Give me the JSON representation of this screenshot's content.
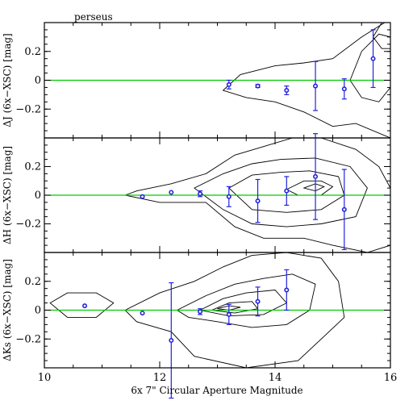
{
  "chart_data": {
    "type": "scatter",
    "title": "perseus",
    "xlabel": "6x 7\" Circular Aperture Magnitude",
    "xlim": [
      10,
      16
    ],
    "x_ticks": [
      10,
      12,
      14,
      16
    ],
    "panels": [
      {
        "name": "J",
        "ylabel": "ΔJ (6x−XSC) [mag]",
        "ylim": [
          -0.4,
          0.4
        ],
        "y_ticks": [
          "0.2",
          "0",
          "−0.2"
        ],
        "points": [
          {
            "x": 13.2,
            "y": -0.03,
            "err": 0.03
          },
          {
            "x": 13.7,
            "y": -0.04,
            "err": 0.01
          },
          {
            "x": 14.2,
            "y": -0.07,
            "err": 0.03
          },
          {
            "x": 14.7,
            "y": -0.04,
            "err": 0.17
          },
          {
            "x": 15.2,
            "y": -0.06,
            "err": 0.07
          },
          {
            "x": 15.7,
            "y": 0.15,
            "err": 0.2
          }
        ],
        "contours": [
          [
            [
              13.1,
              -0.07
            ],
            [
              13.4,
              0.04
            ],
            [
              14.0,
              0.1
            ],
            [
              14.5,
              0.12
            ],
            [
              15.0,
              0.15
            ],
            [
              15.5,
              0.3
            ],
            [
              15.9,
              0.4
            ],
            [
              16.0,
              0.4
            ],
            [
              16.0,
              -0.4
            ],
            [
              15.4,
              -0.3
            ],
            [
              15.0,
              -0.32
            ],
            [
              14.5,
              -0.22
            ],
            [
              14.0,
              -0.15
            ],
            [
              13.5,
              -0.12
            ],
            [
              13.1,
              -0.07
            ]
          ],
          [
            [
              15.3,
              0.0
            ],
            [
              15.5,
              0.2
            ],
            [
              15.8,
              0.32
            ],
            [
              16.0,
              0.3
            ],
            [
              16.0,
              -0.05
            ],
            [
              15.8,
              -0.15
            ],
            [
              15.5,
              -0.12
            ],
            [
              15.3,
              0.0
            ]
          ],
          [
            [
              15.7,
              0.3
            ],
            [
              15.85,
              0.4
            ],
            [
              16.0,
              0.4
            ],
            [
              16.0,
              0.22
            ],
            [
              15.85,
              0.22
            ],
            [
              15.7,
              0.3
            ]
          ]
        ]
      },
      {
        "name": "H",
        "ylabel": "ΔH (6x−XSC) [mag]",
        "ylim": [
          -0.4,
          0.4
        ],
        "y_ticks": [
          "0.2",
          "0",
          "−0.2"
        ],
        "points": [
          {
            "x": 11.7,
            "y": -0.01,
            "err": 0.0
          },
          {
            "x": 12.2,
            "y": 0.02,
            "err": 0.0
          },
          {
            "x": 12.7,
            "y": 0.01,
            "err": 0.02
          },
          {
            "x": 13.2,
            "y": -0.01,
            "err": 0.07
          },
          {
            "x": 13.7,
            "y": -0.04,
            "err": 0.15
          },
          {
            "x": 14.2,
            "y": 0.03,
            "err": 0.1
          },
          {
            "x": 14.7,
            "y": 0.13,
            "err": 0.3
          },
          {
            "x": 15.2,
            "y": -0.1,
            "err": 0.28
          }
        ],
        "contours": [
          [
            [
              11.4,
              0.0
            ],
            [
              11.6,
              0.03
            ],
            [
              12.2,
              0.08
            ],
            [
              12.8,
              0.15
            ],
            [
              13.3,
              0.28
            ],
            [
              13.8,
              0.34
            ],
            [
              14.3,
              0.4
            ],
            [
              14.8,
              0.4
            ],
            [
              15.4,
              0.32
            ],
            [
              15.8,
              0.2
            ],
            [
              16.0,
              0.05
            ],
            [
              16.0,
              -0.35
            ],
            [
              15.6,
              -0.4
            ],
            [
              15.0,
              -0.35
            ],
            [
              14.5,
              -0.3
            ],
            [
              13.8,
              -0.3
            ],
            [
              13.3,
              -0.22
            ],
            [
              12.8,
              -0.05
            ],
            [
              12.0,
              -0.05
            ],
            [
              11.4,
              0.0
            ]
          ],
          [
            [
              12.6,
              0.05
            ],
            [
              13.1,
              0.15
            ],
            [
              13.6,
              0.22
            ],
            [
              14.1,
              0.25
            ],
            [
              14.7,
              0.26
            ],
            [
              15.3,
              0.2
            ],
            [
              15.6,
              0.05
            ],
            [
              15.4,
              -0.15
            ],
            [
              14.8,
              -0.2
            ],
            [
              14.2,
              -0.22
            ],
            [
              13.6,
              -0.2
            ],
            [
              13.1,
              -0.1
            ],
            [
              12.6,
              0.05
            ]
          ],
          [
            [
              13.2,
              0.05
            ],
            [
              13.6,
              0.14
            ],
            [
              14.1,
              0.16
            ],
            [
              14.6,
              0.17
            ],
            [
              15.1,
              0.13
            ],
            [
              15.2,
              0.0
            ],
            [
              14.8,
              -0.1
            ],
            [
              14.2,
              -0.12
            ],
            [
              13.6,
              -0.1
            ],
            [
              13.2,
              0.05
            ]
          ],
          [
            [
              14.2,
              0.04
            ],
            [
              14.5,
              0.1
            ],
            [
              14.8,
              0.1
            ],
            [
              15.0,
              0.06
            ],
            [
              14.8,
              0.0
            ],
            [
              14.4,
              0.0
            ],
            [
              14.2,
              0.04
            ]
          ],
          [
            [
              14.5,
              0.05
            ],
            [
              14.7,
              0.08
            ],
            [
              14.85,
              0.06
            ],
            [
              14.7,
              0.03
            ],
            [
              14.5,
              0.05
            ]
          ]
        ]
      },
      {
        "name": "Ks",
        "ylabel": "ΔKs (6x−XSC) [mag]",
        "ylim": [
          -0.4,
          0.4
        ],
        "y_ticks": [
          "0.2",
          "0",
          "−0.2"
        ],
        "points": [
          {
            "x": 10.7,
            "y": 0.03,
            "err": 0.0
          },
          {
            "x": 11.7,
            "y": -0.02,
            "err": 0.0
          },
          {
            "x": 12.2,
            "y": -0.21,
            "err": 0.4
          },
          {
            "x": 12.7,
            "y": -0.01,
            "err": 0.02
          },
          {
            "x": 13.2,
            "y": -0.03,
            "err": 0.07
          },
          {
            "x": 13.7,
            "y": 0.06,
            "err": 0.1
          },
          {
            "x": 14.2,
            "y": 0.14,
            "err": 0.14
          }
        ],
        "contours": [
          [
            [
              10.1,
              0.05
            ],
            [
              10.4,
              0.12
            ],
            [
              10.9,
              0.12
            ],
            [
              11.2,
              0.05
            ],
            [
              10.9,
              -0.05
            ],
            [
              10.4,
              -0.05
            ],
            [
              10.1,
              0.05
            ]
          ],
          [
            [
              11.4,
              0.0
            ],
            [
              12.0,
              0.12
            ],
            [
              12.6,
              0.2
            ],
            [
              13.1,
              0.3
            ],
            [
              13.6,
              0.38
            ],
            [
              14.2,
              0.4
            ],
            [
              14.8,
              0.36
            ],
            [
              15.1,
              0.2
            ],
            [
              15.2,
              -0.05
            ],
            [
              14.8,
              -0.2
            ],
            [
              14.4,
              -0.35
            ],
            [
              13.5,
              -0.4
            ],
            [
              12.6,
              -0.32
            ],
            [
              12.2,
              -0.15
            ],
            [
              11.6,
              -0.08
            ],
            [
              11.4,
              0.0
            ]
          ],
          [
            [
              12.3,
              0.0
            ],
            [
              12.8,
              0.1
            ],
            [
              13.3,
              0.18
            ],
            [
              13.8,
              0.22
            ],
            [
              14.3,
              0.25
            ],
            [
              14.7,
              0.18
            ],
            [
              14.6,
              0.0
            ],
            [
              14.2,
              -0.1
            ],
            [
              13.6,
              -0.12
            ],
            [
              13.0,
              -0.08
            ],
            [
              12.5,
              -0.05
            ],
            [
              12.3,
              0.0
            ]
          ],
          [
            [
              12.7,
              0.0
            ],
            [
              13.1,
              0.08
            ],
            [
              13.5,
              0.12
            ],
            [
              14.0,
              0.14
            ],
            [
              14.2,
              0.05
            ],
            [
              13.8,
              -0.03
            ],
            [
              13.2,
              -0.04
            ],
            [
              12.7,
              0.0
            ]
          ],
          [
            [
              12.9,
              0.0
            ],
            [
              13.2,
              0.05
            ],
            [
              13.6,
              0.06
            ],
            [
              13.7,
              0.01
            ],
            [
              13.3,
              -0.02
            ],
            [
              12.9,
              0.0
            ]
          ],
          [
            [
              13.0,
              0.01
            ],
            [
              13.2,
              0.03
            ],
            [
              13.4,
              0.02
            ],
            [
              13.2,
              0.0
            ],
            [
              13.0,
              0.01
            ]
          ]
        ]
      }
    ],
    "reference_line": {
      "y": 0,
      "color": "#00cc00"
    },
    "point_color": "#2222dd",
    "grid": false
  }
}
